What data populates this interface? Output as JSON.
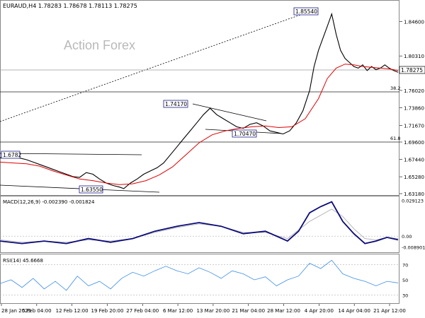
{
  "chart_data": {
    "type": "line",
    "symbol_header": "EURAUD,H4  1.78283 1.78678 1.78113 1.78275",
    "watermark": "Action Forex",
    "colors": {
      "price": "#000000",
      "ma": "#e00000",
      "macd": "#0a0a7a",
      "signal": "#b0b0b0",
      "rsi": "#3d8de8",
      "grid": "#c8c8c8",
      "label_box": "#1a1a8c"
    },
    "price_panel": {
      "ylim": [
        1.6318,
        1.8692
      ],
      "y_ticks": [
        "1.84600",
        "1.80310",
        "1.76020",
        "1.73860",
        "1.71670",
        "1.69600",
        "1.67440",
        "1.65280",
        "1.63180"
      ],
      "last_price_label": "1.78275",
      "last_price": 1.78275,
      "series": [
        {
          "points": [
            [
              0,
              1.676
            ],
            [
              3,
              1.68
            ],
            [
              6,
              1.678
            ],
            [
              9,
              1.676
            ],
            [
              12,
              1.674
            ],
            [
              15,
              1.671
            ],
            [
              18,
              1.668
            ],
            [
              21,
              1.665
            ],
            [
              24,
              1.662
            ],
            [
              27,
              1.659
            ],
            [
              30,
              1.656
            ],
            [
              33,
              1.653
            ],
            [
              36,
              1.652
            ],
            [
              39,
              1.658
            ],
            [
              42,
              1.656
            ],
            [
              45,
              1.65
            ],
            [
              48,
              1.645
            ],
            [
              51,
              1.642
            ],
            [
              54,
              1.64
            ],
            [
              56,
              1.638
            ],
            [
              59,
              1.645
            ],
            [
              62,
              1.65
            ],
            [
              65,
              1.656
            ],
            [
              68,
              1.66
            ],
            [
              71,
              1.664
            ],
            [
              74,
              1.67
            ],
            [
              77,
              1.68
            ],
            [
              80,
              1.69
            ],
            [
              83,
              1.7
            ],
            [
              86,
              1.71
            ],
            [
              89,
              1.72
            ],
            [
              92,
              1.73
            ],
            [
              95,
              1.738
            ],
            [
              98,
              1.73
            ],
            [
              101,
              1.725
            ],
            [
              104,
              1.72
            ],
            [
              107,
              1.715
            ],
            [
              110,
              1.713
            ],
            [
              113,
              1.718
            ],
            [
              116,
              1.72
            ],
            [
              119,
              1.716
            ],
            [
              122,
              1.71
            ],
            [
              125,
              1.708
            ],
            [
              128,
              1.706
            ],
            [
              131,
              1.71
            ],
            [
              134,
              1.72
            ],
            [
              137,
              1.735
            ],
            [
              140,
              1.76
            ],
            [
              142,
              1.79
            ],
            [
              144,
              1.81
            ],
            [
              146,
              1.825
            ],
            [
              148,
              1.84
            ],
            [
              150,
              1.8554
            ],
            [
              152,
              1.83
            ],
            [
              154,
              1.81
            ],
            [
              156,
              1.8
            ],
            [
              158,
              1.795
            ],
            [
              160,
              1.79
            ],
            [
              162,
              1.788
            ],
            [
              164,
              1.792
            ],
            [
              166,
              1.785
            ],
            [
              168,
              1.79
            ],
            [
              170,
              1.786
            ],
            [
              172,
              1.788
            ],
            [
              174,
              1.792
            ],
            [
              176,
              1.788
            ],
            [
              178,
              1.785
            ],
            [
              180,
              1.7828
            ]
          ]
        },
        {
          "points": [
            [
              0,
              1.671
            ],
            [
              6,
              1.67
            ],
            [
              12,
              1.669
            ],
            [
              18,
              1.666
            ],
            [
              24,
              1.66
            ],
            [
              30,
              1.655
            ],
            [
              36,
              1.65
            ],
            [
              42,
              1.648
            ],
            [
              48,
              1.645
            ],
            [
              54,
              1.643
            ],
            [
              60,
              1.644
            ],
            [
              66,
              1.648
            ],
            [
              72,
              1.655
            ],
            [
              78,
              1.665
            ],
            [
              84,
              1.68
            ],
            [
              90,
              1.695
            ],
            [
              96,
              1.705
            ],
            [
              102,
              1.71
            ],
            [
              108,
              1.713
            ],
            [
              114,
              1.715
            ],
            [
              120,
              1.716
            ],
            [
              126,
              1.714
            ],
            [
              132,
              1.715
            ],
            [
              138,
              1.725
            ],
            [
              144,
              1.75
            ],
            [
              148,
              1.775
            ],
            [
              152,
              1.788
            ],
            [
              156,
              1.793
            ],
            [
              160,
              1.792
            ],
            [
              164,
              1.79
            ],
            [
              168,
              1.789
            ],
            [
              172,
              1.788
            ],
            [
              176,
              1.787
            ],
            [
              180,
              1.785
            ]
          ]
        }
      ],
      "labels": [
        "1.6782",
        "1.63550",
        "1.74170",
        "1.70470",
        "1.85540"
      ],
      "fib_labels": [
        "38.2",
        "61.8"
      ]
    },
    "macd_panel": {
      "title": "MACD(12,26,9) -0.002390 -0.001824",
      "ylim": [
        -0.012,
        0.03
      ],
      "y_ticks": [
        "0.029123",
        "0.00",
        "-0.008901"
      ],
      "macd": [
        [
          0,
          -0.004
        ],
        [
          10,
          -0.006
        ],
        [
          20,
          -0.004
        ],
        [
          30,
          -0.006
        ],
        [
          40,
          -0.002
        ],
        [
          50,
          -0.005
        ],
        [
          60,
          -0.002
        ],
        [
          70,
          0.004
        ],
        [
          80,
          0.008
        ],
        [
          90,
          0.011
        ],
        [
          100,
          0.008
        ],
        [
          110,
          0.002
        ],
        [
          120,
          0.004
        ],
        [
          130,
          -0.004
        ],
        [
          135,
          0.004
        ],
        [
          140,
          0.019
        ],
        [
          145,
          0.024
        ],
        [
          150,
          0.028
        ],
        [
          155,
          0.012
        ],
        [
          160,
          0.002
        ],
        [
          165,
          -0.006
        ],
        [
          170,
          -0.004
        ],
        [
          175,
          -0.001
        ],
        [
          180,
          -0.003
        ]
      ],
      "signal": [
        [
          0,
          -0.003
        ],
        [
          10,
          -0.005
        ],
        [
          20,
          -0.004
        ],
        [
          30,
          -0.005
        ],
        [
          40,
          -0.003
        ],
        [
          50,
          -0.004
        ],
        [
          60,
          -0.002
        ],
        [
          70,
          0.003
        ],
        [
          80,
          0.007
        ],
        [
          90,
          0.01
        ],
        [
          100,
          0.008
        ],
        [
          110,
          0.003
        ],
        [
          120,
          0.003
        ],
        [
          130,
          -0.002
        ],
        [
          140,
          0.012
        ],
        [
          150,
          0.022
        ],
        [
          155,
          0.016
        ],
        [
          160,
          0.006
        ],
        [
          165,
          -0.002
        ],
        [
          170,
          -0.003
        ],
        [
          175,
          -0.001
        ],
        [
          180,
          -0.002
        ]
      ]
    },
    "rsi_panel": {
      "title": "RSI(14) 45.6668",
      "ylim": [
        20,
        80
      ],
      "y_ticks": [
        "70",
        "50",
        "30"
      ],
      "series": [
        [
          0,
          45
        ],
        [
          5,
          50
        ],
        [
          10,
          40
        ],
        [
          15,
          52
        ],
        [
          20,
          38
        ],
        [
          25,
          48
        ],
        [
          30,
          36
        ],
        [
          35,
          55
        ],
        [
          40,
          42
        ],
        [
          45,
          48
        ],
        [
          50,
          38
        ],
        [
          55,
          52
        ],
        [
          60,
          60
        ],
        [
          65,
          55
        ],
        [
          70,
          62
        ],
        [
          75,
          68
        ],
        [
          80,
          62
        ],
        [
          85,
          58
        ],
        [
          90,
          66
        ],
        [
          95,
          60
        ],
        [
          100,
          52
        ],
        [
          105,
          62
        ],
        [
          110,
          58
        ],
        [
          115,
          50
        ],
        [
          120,
          54
        ],
        [
          125,
          42
        ],
        [
          130,
          50
        ],
        [
          135,
          55
        ],
        [
          140,
          72
        ],
        [
          145,
          65
        ],
        [
          150,
          76
        ],
        [
          155,
          58
        ],
        [
          160,
          52
        ],
        [
          165,
          48
        ],
        [
          170,
          42
        ],
        [
          175,
          48
        ],
        [
          180,
          46
        ]
      ]
    },
    "x_ticks": [
      "28 Jan 2025",
      "5 Feb 04:00",
      "12 Feb 12:00",
      "19 Feb 20:00",
      "27 Feb 04:00",
      "6 Mar 12:00",
      "13 Mar 20:00",
      "21 Mar 04:00",
      "28 Mar 12:00",
      "4 Apr 20:00",
      "14 Apr 04:00",
      "21 Apr 12:00"
    ]
  }
}
